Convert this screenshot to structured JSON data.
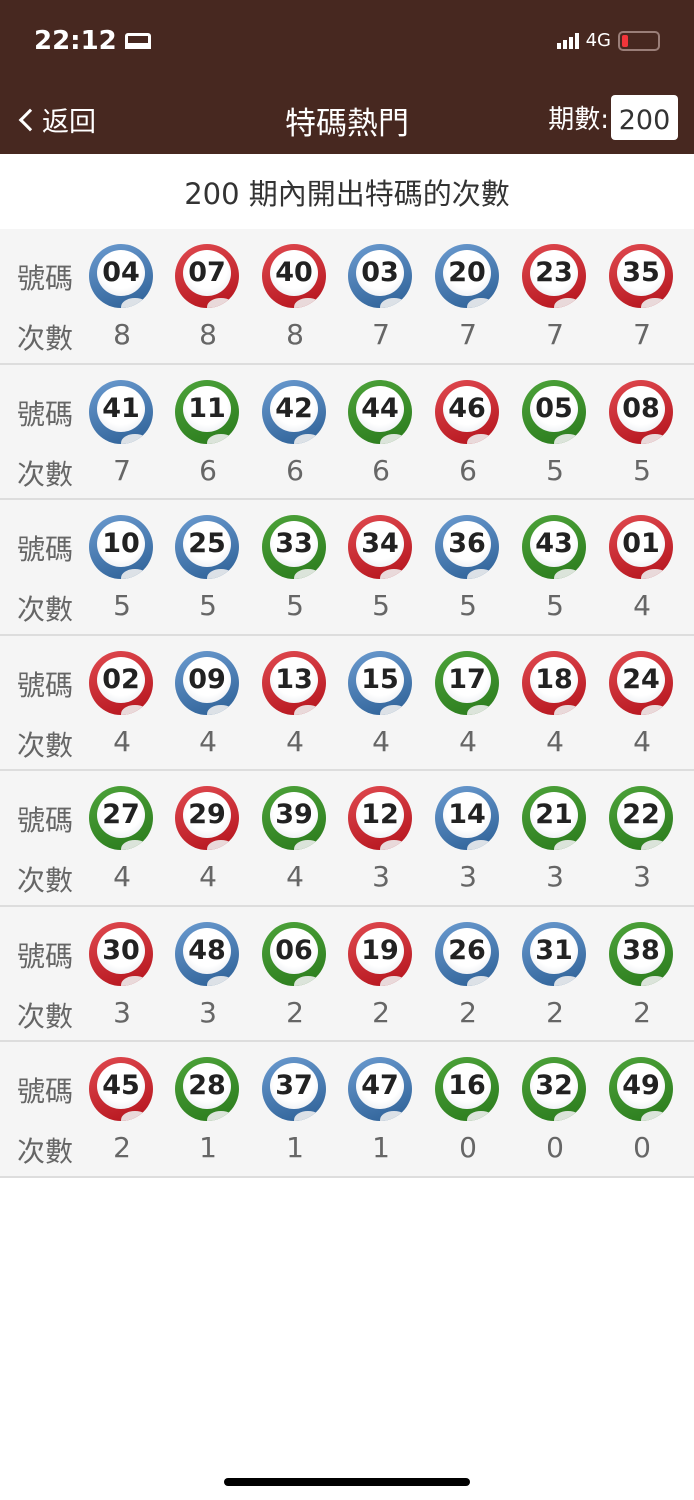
{
  "status": {
    "time": "22:12",
    "network": "4G",
    "icons": [
      "bed-icon",
      "signal-icon",
      "battery-low-icon"
    ]
  },
  "nav": {
    "back": "返回",
    "title": "特碼熱門",
    "period_label": "期數:",
    "period_value": "200"
  },
  "subtitle": "200 期內開出特碼的次數",
  "labels": {
    "number": "號碼",
    "count": "次數"
  },
  "colors": {
    "red": "#c4262e",
    "blue": "#3f72aa",
    "green": "#3a8a2a",
    "header": "#472820"
  },
  "rows": [
    [
      {
        "n": "04",
        "c": "blue",
        "k": "8"
      },
      {
        "n": "07",
        "c": "red",
        "k": "8"
      },
      {
        "n": "40",
        "c": "red",
        "k": "8"
      },
      {
        "n": "03",
        "c": "blue",
        "k": "7"
      },
      {
        "n": "20",
        "c": "blue",
        "k": "7"
      },
      {
        "n": "23",
        "c": "red",
        "k": "7"
      },
      {
        "n": "35",
        "c": "red",
        "k": "7"
      }
    ],
    [
      {
        "n": "41",
        "c": "blue",
        "k": "7"
      },
      {
        "n": "11",
        "c": "green",
        "k": "6"
      },
      {
        "n": "42",
        "c": "blue",
        "k": "6"
      },
      {
        "n": "44",
        "c": "green",
        "k": "6"
      },
      {
        "n": "46",
        "c": "red",
        "k": "6"
      },
      {
        "n": "05",
        "c": "green",
        "k": "5"
      },
      {
        "n": "08",
        "c": "red",
        "k": "5"
      }
    ],
    [
      {
        "n": "10",
        "c": "blue",
        "k": "5"
      },
      {
        "n": "25",
        "c": "blue",
        "k": "5"
      },
      {
        "n": "33",
        "c": "green",
        "k": "5"
      },
      {
        "n": "34",
        "c": "red",
        "k": "5"
      },
      {
        "n": "36",
        "c": "blue",
        "k": "5"
      },
      {
        "n": "43",
        "c": "green",
        "k": "5"
      },
      {
        "n": "01",
        "c": "red",
        "k": "4"
      }
    ],
    [
      {
        "n": "02",
        "c": "red",
        "k": "4"
      },
      {
        "n": "09",
        "c": "blue",
        "k": "4"
      },
      {
        "n": "13",
        "c": "red",
        "k": "4"
      },
      {
        "n": "15",
        "c": "blue",
        "k": "4"
      },
      {
        "n": "17",
        "c": "green",
        "k": "4"
      },
      {
        "n": "18",
        "c": "red",
        "k": "4"
      },
      {
        "n": "24",
        "c": "red",
        "k": "4"
      }
    ],
    [
      {
        "n": "27",
        "c": "green",
        "k": "4"
      },
      {
        "n": "29",
        "c": "red",
        "k": "4"
      },
      {
        "n": "39",
        "c": "green",
        "k": "4"
      },
      {
        "n": "12",
        "c": "red",
        "k": "3"
      },
      {
        "n": "14",
        "c": "blue",
        "k": "3"
      },
      {
        "n": "21",
        "c": "green",
        "k": "3"
      },
      {
        "n": "22",
        "c": "green",
        "k": "3"
      }
    ],
    [
      {
        "n": "30",
        "c": "red",
        "k": "3"
      },
      {
        "n": "48",
        "c": "blue",
        "k": "3"
      },
      {
        "n": "06",
        "c": "green",
        "k": "2"
      },
      {
        "n": "19",
        "c": "red",
        "k": "2"
      },
      {
        "n": "26",
        "c": "blue",
        "k": "2"
      },
      {
        "n": "31",
        "c": "blue",
        "k": "2"
      },
      {
        "n": "38",
        "c": "green",
        "k": "2"
      }
    ],
    [
      {
        "n": "45",
        "c": "red",
        "k": "2"
      },
      {
        "n": "28",
        "c": "green",
        "k": "1"
      },
      {
        "n": "37",
        "c": "blue",
        "k": "1"
      },
      {
        "n": "47",
        "c": "blue",
        "k": "1"
      },
      {
        "n": "16",
        "c": "green",
        "k": "0"
      },
      {
        "n": "32",
        "c": "green",
        "k": "0"
      },
      {
        "n": "49",
        "c": "green",
        "k": "0"
      }
    ]
  ]
}
